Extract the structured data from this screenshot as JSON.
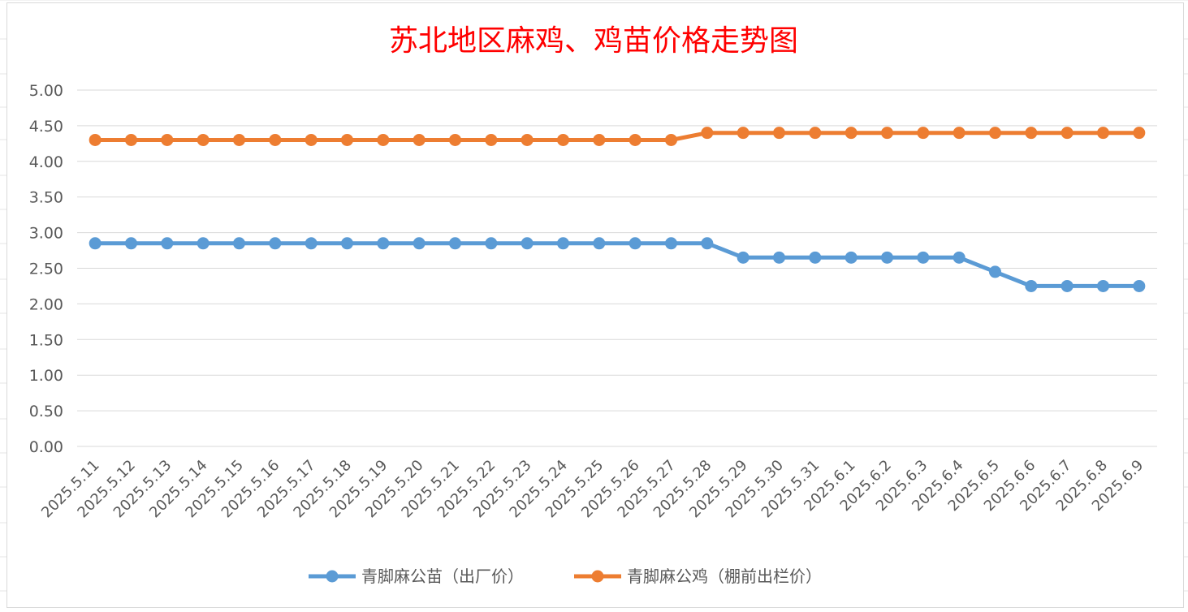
{
  "chart_data": {
    "type": "line",
    "title": "苏北地区麻鸡、鸡苗价格走势图",
    "xlabel": "",
    "ylabel": "",
    "ylim": [
      0,
      5
    ],
    "ytick_step": 0.5,
    "yticks": [
      "0.00",
      "0.50",
      "1.00",
      "1.50",
      "2.00",
      "2.50",
      "3.00",
      "3.50",
      "4.00",
      "4.50",
      "5.00"
    ],
    "grid": true,
    "legend_position": "bottom",
    "categories": [
      "2025.5.11",
      "2025.5.12",
      "2025.5.13",
      "2025.5.14",
      "2025.5.15",
      "2025.5.16",
      "2025.5.17",
      "2025.5.18",
      "2025.5.19",
      "2025.5.20",
      "2025.5.21",
      "2025.5.22",
      "2025.5.23",
      "2025.5.24",
      "2025.5.25",
      "2025.5.26",
      "2025.5.27",
      "2025.5.28",
      "2025.5.29",
      "2025.5.30",
      "2025.5.31",
      "2025.6.1",
      "2025.6.2",
      "2025.6.3",
      "2025.6.4",
      "2025.6.5",
      "2025.6.6",
      "2025.6.7",
      "2025.6.8",
      "2025.6.9"
    ],
    "series": [
      {
        "name": "青脚麻公苗（出厂价）",
        "color": "#5b9bd5",
        "values": [
          2.85,
          2.85,
          2.85,
          2.85,
          2.85,
          2.85,
          2.85,
          2.85,
          2.85,
          2.85,
          2.85,
          2.85,
          2.85,
          2.85,
          2.85,
          2.85,
          2.85,
          2.85,
          2.65,
          2.65,
          2.65,
          2.65,
          2.65,
          2.65,
          2.65,
          2.45,
          2.25,
          2.25,
          2.25,
          2.25
        ]
      },
      {
        "name": "青脚麻公鸡（棚前出栏价）",
        "color": "#ed7d31",
        "values": [
          4.3,
          4.3,
          4.3,
          4.3,
          4.3,
          4.3,
          4.3,
          4.3,
          4.3,
          4.3,
          4.3,
          4.3,
          4.3,
          4.3,
          4.3,
          4.3,
          4.3,
          4.4,
          4.4,
          4.4,
          4.4,
          4.4,
          4.4,
          4.4,
          4.4,
          4.4,
          4.4,
          4.4,
          4.4,
          4.4
        ]
      }
    ]
  }
}
